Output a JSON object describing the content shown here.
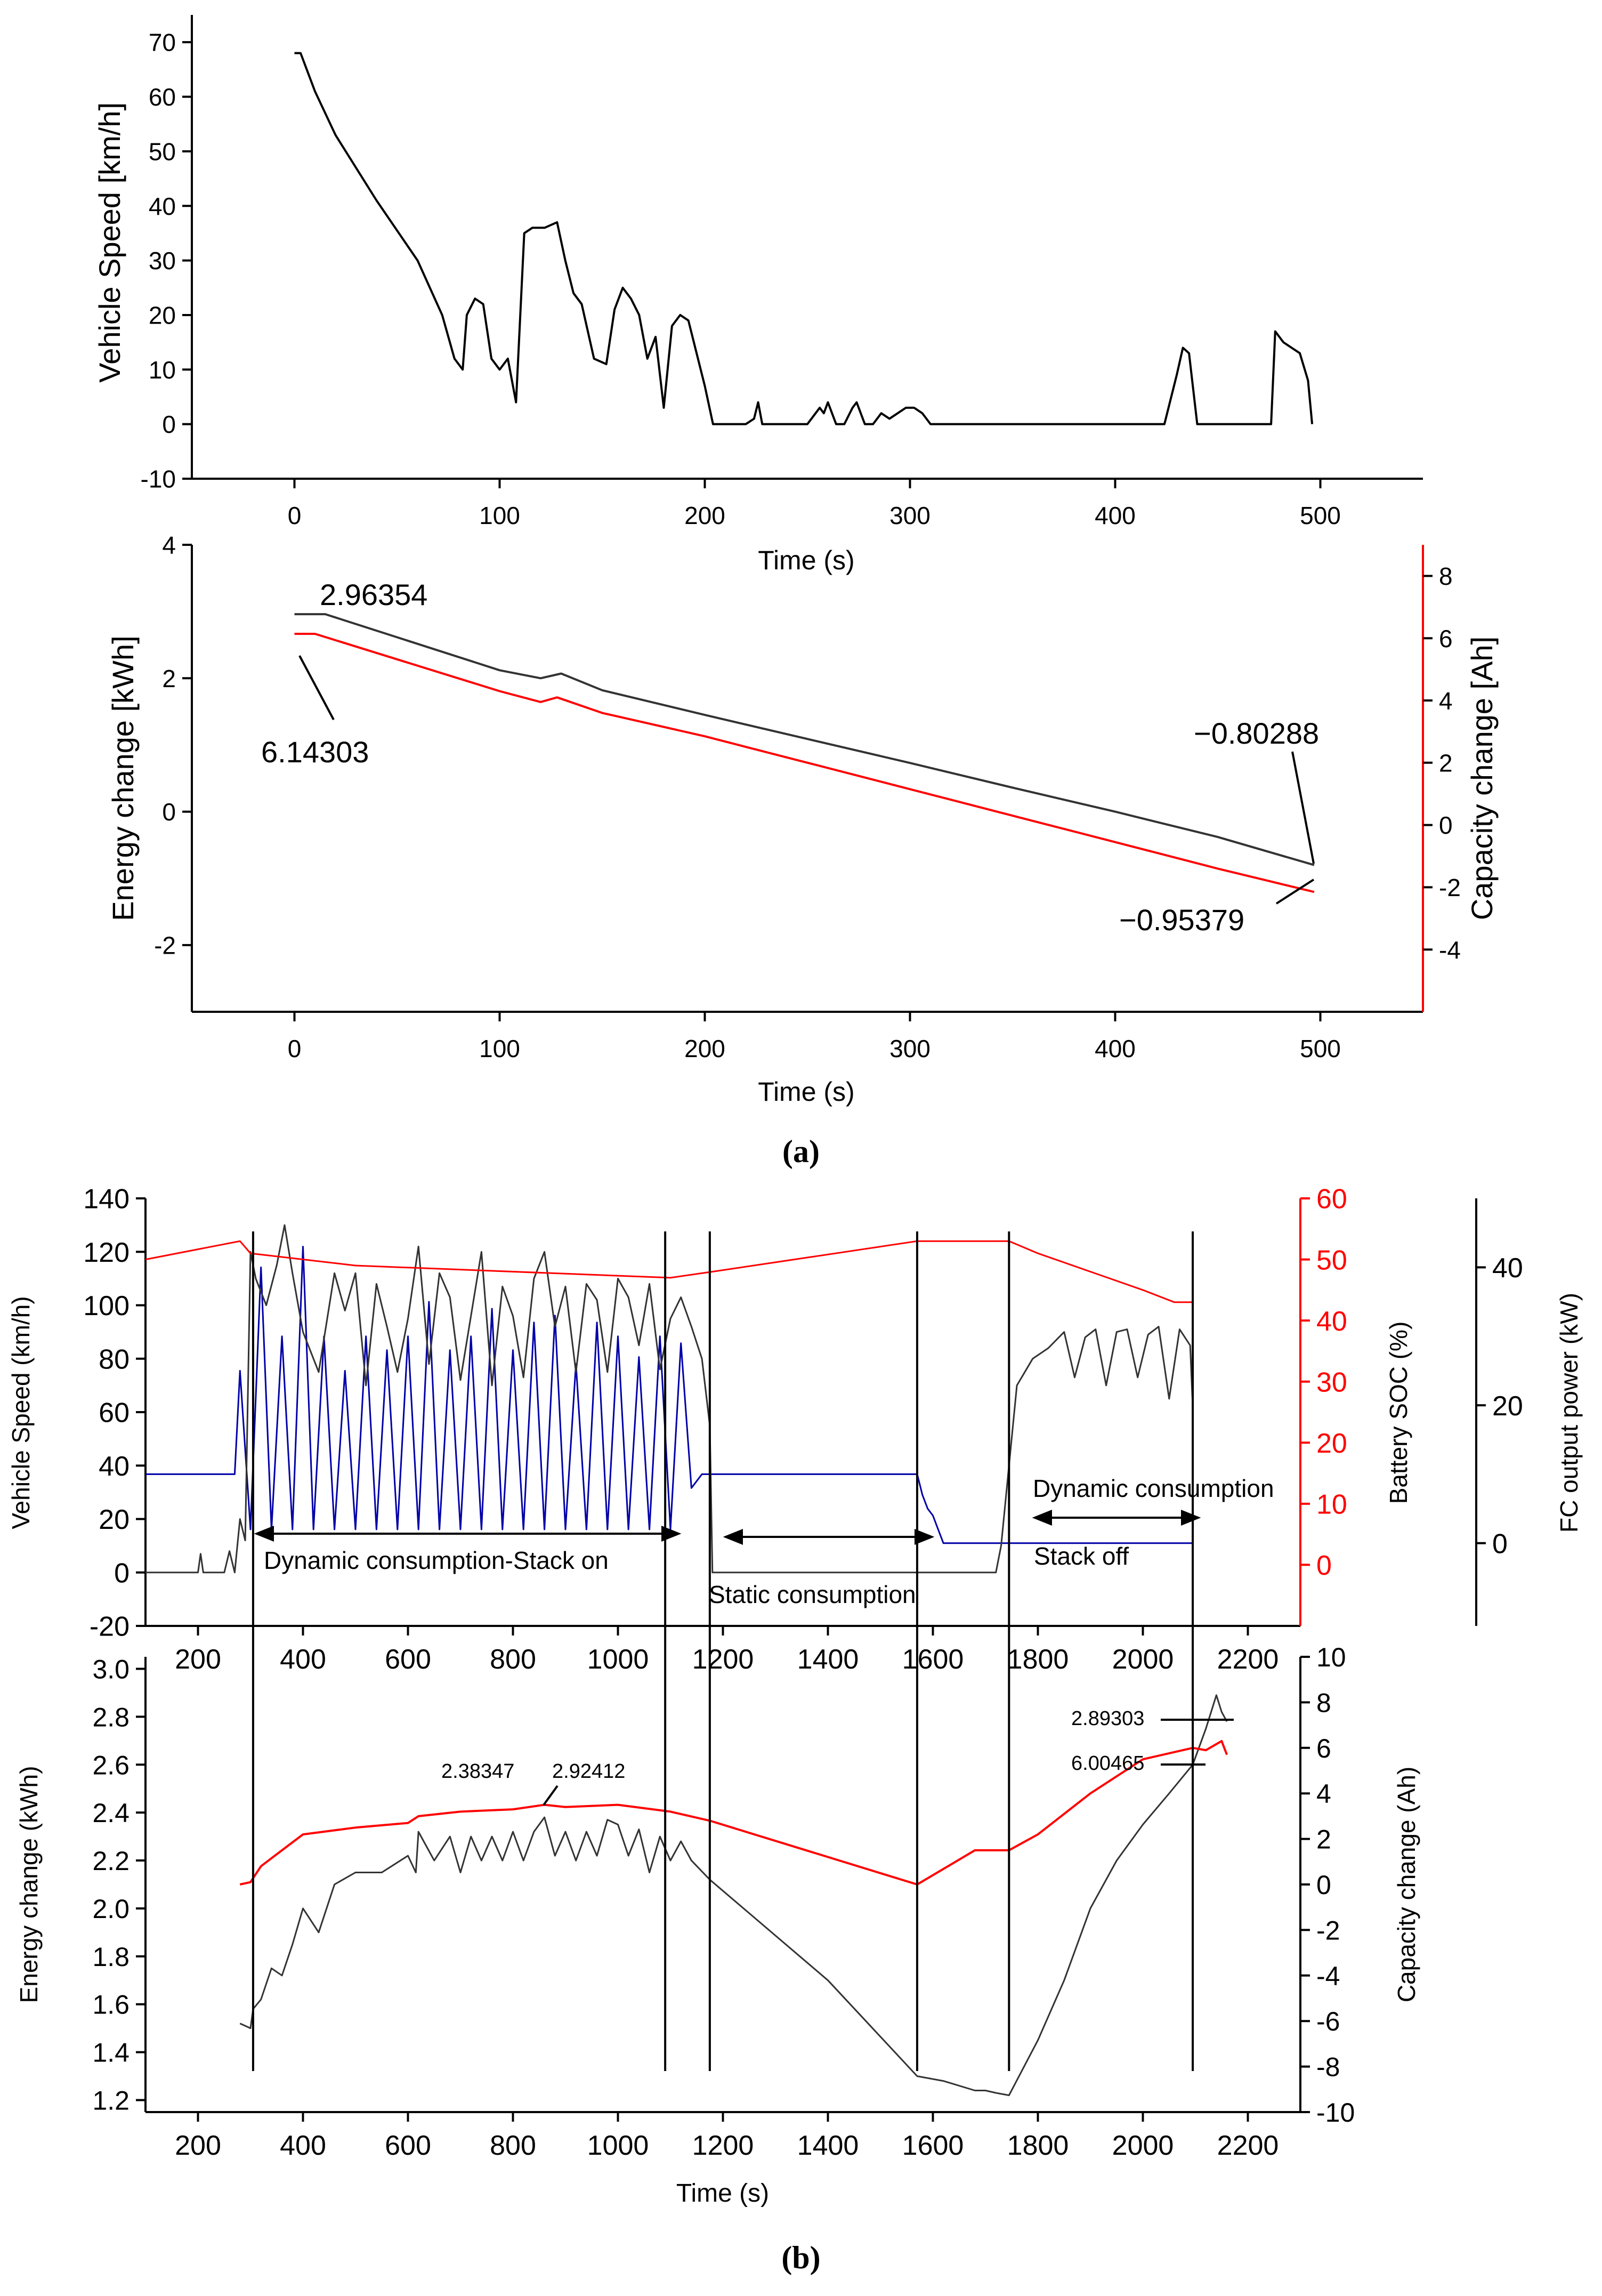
{
  "colors": {
    "black": "#000000",
    "red": "#ff0000",
    "blue": "#0000a8",
    "gray": "#333333"
  },
  "captions": {
    "a": "(a)",
    "b": "(b)"
  },
  "chart_data": [
    {
      "id": "a_speed",
      "type": "line",
      "xlabel": "Time (s)",
      "ylabel": "Vehicle Speed [km/h]",
      "xlim": [
        -50,
        550
      ],
      "ylim": [
        -10,
        75
      ],
      "xticks": [
        0,
        100,
        200,
        300,
        400,
        500
      ],
      "yticks": [
        -10,
        0,
        10,
        20,
        30,
        40,
        50,
        60,
        70
      ],
      "series": [
        {
          "name": "Vehicle Speed",
          "color": "#000000",
          "x": [
            0,
            3,
            10,
            20,
            40,
            60,
            72,
            78,
            82,
            84,
            88,
            92,
            96,
            100,
            104,
            108,
            112,
            116,
            122,
            128,
            132,
            136,
            140,
            146,
            152,
            156,
            160,
            164,
            168,
            172,
            176,
            180,
            184,
            188,
            192,
            196,
            200,
            204,
            210,
            220,
            224,
            226,
            228,
            232,
            250,
            256,
            258,
            260,
            264,
            268,
            272,
            274,
            278,
            282,
            286,
            290,
            294,
            298,
            302,
            306,
            310,
            400,
            424,
            430,
            433,
            436,
            440,
            470,
            476,
            478,
            482,
            486,
            490,
            494,
            496
          ],
          "y": [
            68,
            68,
            61,
            53,
            41,
            30,
            20,
            12,
            10,
            20,
            23,
            22,
            12,
            10,
            12,
            4,
            35,
            36,
            36,
            37,
            30,
            24,
            22,
            12,
            11,
            21,
            25,
            23,
            20,
            12,
            16,
            3,
            18,
            20,
            19,
            13,
            7,
            0,
            0,
            0,
            1,
            4,
            0,
            0,
            0,
            3,
            2,
            4,
            0,
            0,
            3,
            4,
            0,
            0,
            2,
            1,
            2,
            3,
            3,
            2,
            0,
            0,
            0,
            9,
            14,
            13,
            0,
            0,
            0,
            17,
            15,
            14,
            13,
            8,
            0
          ]
        }
      ]
    },
    {
      "id": "a_energy",
      "type": "line",
      "xlabel": "Time (s)",
      "ylabel": "Energy change [kWh]",
      "y2label": "Capacity change [Ah]",
      "xlim": [
        -50,
        550
      ],
      "ylim": [
        -3,
        4
      ],
      "y2lim": [
        -6,
        9
      ],
      "xticks": [
        0,
        100,
        200,
        300,
        400,
        500
      ],
      "yticks": [
        -2,
        0,
        2,
        4
      ],
      "y2ticks": [
        -4,
        -2,
        0,
        2,
        4,
        6,
        8
      ],
      "annotations": [
        "2.96354",
        "6.14303",
        "−0.80288",
        "−0.95379"
      ],
      "series": [
        {
          "name": "Energy change",
          "axis": "left",
          "color": "#333333",
          "x": [
            0,
            15,
            100,
            120,
            130,
            150,
            200,
            250,
            300,
            350,
            400,
            450,
            497
          ],
          "y": [
            2.96,
            2.96,
            2.12,
            2.0,
            2.07,
            1.82,
            1.45,
            1.09,
            0.73,
            0.36,
            0.0,
            -0.38,
            -0.8
          ]
        },
        {
          "name": "Capacity change",
          "axis": "right",
          "color": "#ff0000",
          "x": [
            0,
            10,
            100,
            120,
            128,
            150,
            200,
            250,
            300,
            350,
            400,
            450,
            497
          ],
          "y": [
            6.14,
            6.14,
            4.3,
            3.95,
            4.1,
            3.6,
            2.85,
            2.0,
            1.15,
            0.3,
            -0.55,
            -1.4,
            -2.15
          ]
        }
      ]
    },
    {
      "id": "b_speed",
      "type": "line",
      "ylabel": "Vehicle Speed (km/h)",
      "y2label": "Battery SOC (%)",
      "y3label": "FC output power (kW)",
      "xlim": [
        100,
        2300
      ],
      "ylim": [
        -20,
        140
      ],
      "y2lim": [
        -10,
        60
      ],
      "y3lim": [
        -12,
        50
      ],
      "xticks": [
        200,
        400,
        600,
        800,
        1000,
        1200,
        1400,
        1600,
        1800,
        2000,
        2200
      ],
      "yticks": [
        -20,
        0,
        20,
        40,
        60,
        80,
        100,
        120,
        140
      ],
      "y2ticks": [
        0,
        10,
        20,
        30,
        40,
        50,
        60
      ],
      "y3ticks": [
        0,
        20,
        40
      ],
      "annotations": [
        "Dynamic consumption-Stack on",
        "Static consumption",
        "Dynamic consumption",
        "Stack off"
      ],
      "vlines": [
        305,
        1090,
        1175,
        1570,
        1745,
        2095
      ],
      "series": [
        {
          "name": "Vehicle Speed",
          "axis": "left",
          "color": "#333333",
          "x": [
            100,
            200,
            205,
            210,
            250,
            260,
            270,
            280,
            290,
            300,
            310,
            330,
            350,
            365,
            380,
            400,
            430,
            460,
            480,
            500,
            520,
            540,
            560,
            580,
            600,
            620,
            640,
            660,
            680,
            700,
            720,
            740,
            760,
            780,
            800,
            820,
            840,
            860,
            880,
            900,
            920,
            940,
            960,
            980,
            1000,
            1020,
            1040,
            1060,
            1080,
            1100,
            1120,
            1140,
            1160,
            1175,
            1180,
            1720,
            1730,
            1745,
            1760,
            1790,
            1820,
            1850,
            1870,
            1890,
            1910,
            1930,
            1950,
            1970,
            1990,
            2010,
            2030,
            2050,
            2070,
            2090,
            2095
          ],
          "y": [
            0,
            0,
            7,
            0,
            0,
            8,
            0,
            20,
            12,
            120,
            110,
            100,
            115,
            130,
            112,
            90,
            75,
            112,
            98,
            112,
            70,
            108,
            92,
            75,
            95,
            122,
            78,
            112,
            103,
            72,
            96,
            120,
            70,
            107,
            96,
            73,
            110,
            120,
            92,
            107,
            75,
            108,
            102,
            75,
            110,
            103,
            85,
            108,
            76,
            95,
            103,
            92,
            80,
            55,
            0,
            0,
            10,
            40,
            70,
            80,
            84,
            90,
            73,
            88,
            91,
            70,
            90,
            91,
            73,
            89,
            92,
            65,
            91,
            85,
            62
          ]
        },
        {
          "name": "Battery SOC",
          "axis": "right",
          "color": "#ff0000",
          "x": [
            100,
            280,
            300,
            500,
            1100,
            1180,
            1570,
            1745,
            1800,
            1900,
            2000,
            2060,
            2095
          ],
          "y": [
            50,
            53,
            51,
            49,
            47,
            48,
            53,
            53,
            51,
            48,
            45,
            43,
            43
          ]
        },
        {
          "name": "FC output power",
          "axis": "third",
          "color": "#0000a8",
          "x": [
            100,
            270,
            280,
            300,
            320,
            340,
            360,
            380,
            400,
            420,
            440,
            460,
            480,
            500,
            520,
            540,
            560,
            580,
            600,
            620,
            640,
            660,
            680,
            700,
            720,
            740,
            760,
            780,
            800,
            820,
            840,
            860,
            880,
            900,
            920,
            940,
            960,
            980,
            1000,
            1020,
            1040,
            1060,
            1080,
            1100,
            1120,
            1140,
            1160,
            1175,
            1180,
            1570,
            1580,
            1590,
            1600,
            1610,
            1620,
            2095
          ],
          "y": [
            10,
            10,
            25,
            2,
            40,
            2,
            30,
            2,
            43,
            2,
            30,
            2,
            25,
            2,
            30,
            2,
            28,
            2,
            30,
            2,
            35,
            2,
            28,
            2,
            30,
            2,
            34,
            2,
            28,
            2,
            32,
            2,
            33,
            2,
            26,
            2,
            32,
            2,
            30,
            2,
            27,
            2,
            30,
            2,
            29,
            8,
            10,
            10,
            10,
            10,
            7,
            5,
            4,
            2,
            0,
            0
          ]
        }
      ]
    },
    {
      "id": "b_energy",
      "type": "line",
      "xlabel": "Time (s)",
      "ylabel": "Energy change (kWh)",
      "y2label": "Capacity change (Ah)",
      "xlim": [
        100,
        2300
      ],
      "ylim": [
        1.15,
        3.05
      ],
      "y2lim": [
        -10,
        10
      ],
      "xticks": [
        200,
        400,
        600,
        800,
        1000,
        1200,
        1400,
        1600,
        1800,
        2000,
        2200
      ],
      "yticks": [
        1.2,
        1.4,
        1.6,
        1.8,
        2.0,
        2.2,
        2.4,
        2.6,
        2.8,
        3.0
      ],
      "y2ticks": [
        -10,
        -8,
        -6,
        -4,
        -2,
        0,
        2,
        4,
        6,
        8,
        10
      ],
      "annotations": [
        "2.38347",
        "2.92412",
        "2.89303",
        "6.00465"
      ],
      "series": [
        {
          "name": "Energy change",
          "axis": "left",
          "color": "#333333",
          "x": [
            280,
            300,
            305,
            320,
            340,
            360,
            380,
            400,
            430,
            460,
            500,
            550,
            600,
            615,
            620,
            650,
            680,
            700,
            720,
            740,
            760,
            780,
            800,
            820,
            840,
            860,
            880,
            900,
            920,
            940,
            960,
            980,
            1000,
            1020,
            1040,
            1060,
            1080,
            1100,
            1120,
            1140,
            1175,
            1400,
            1570,
            1620,
            1680,
            1700,
            1720,
            1745,
            1800,
            1850,
            1900,
            1950,
            2000,
            2050,
            2095,
            2120,
            2140,
            2150,
            2160
          ],
          "y": [
            1.52,
            1.5,
            1.58,
            1.62,
            1.75,
            1.72,
            1.85,
            2.0,
            1.9,
            2.1,
            2.15,
            2.15,
            2.22,
            2.15,
            2.32,
            2.2,
            2.3,
            2.15,
            2.3,
            2.2,
            2.3,
            2.2,
            2.32,
            2.2,
            2.32,
            2.38,
            2.22,
            2.32,
            2.2,
            2.32,
            2.22,
            2.37,
            2.35,
            2.22,
            2.33,
            2.15,
            2.3,
            2.2,
            2.28,
            2.2,
            2.12,
            1.7,
            1.3,
            1.28,
            1.24,
            1.24,
            1.23,
            1.22,
            1.45,
            1.7,
            2.0,
            2.2,
            2.35,
            2.48,
            2.6,
            2.75,
            2.89,
            2.82,
            2.78
          ]
        },
        {
          "name": "Capacity change",
          "axis": "right",
          "color": "#ff0000",
          "x": [
            280,
            300,
            320,
            360,
            400,
            500,
            600,
            620,
            700,
            800,
            860,
            900,
            1000,
            1100,
            1175,
            1570,
            1680,
            1745,
            1800,
            1900,
            2000,
            2095,
            2120,
            2150,
            2160
          ],
          "y": [
            0.0,
            0.1,
            0.8,
            1.5,
            2.2,
            2.5,
            2.7,
            3.0,
            3.2,
            3.3,
            3.5,
            3.4,
            3.5,
            3.2,
            2.8,
            0.0,
            1.5,
            1.5,
            2.2,
            4.0,
            5.5,
            6.0,
            5.9,
            6.3,
            5.7
          ]
        }
      ]
    }
  ]
}
